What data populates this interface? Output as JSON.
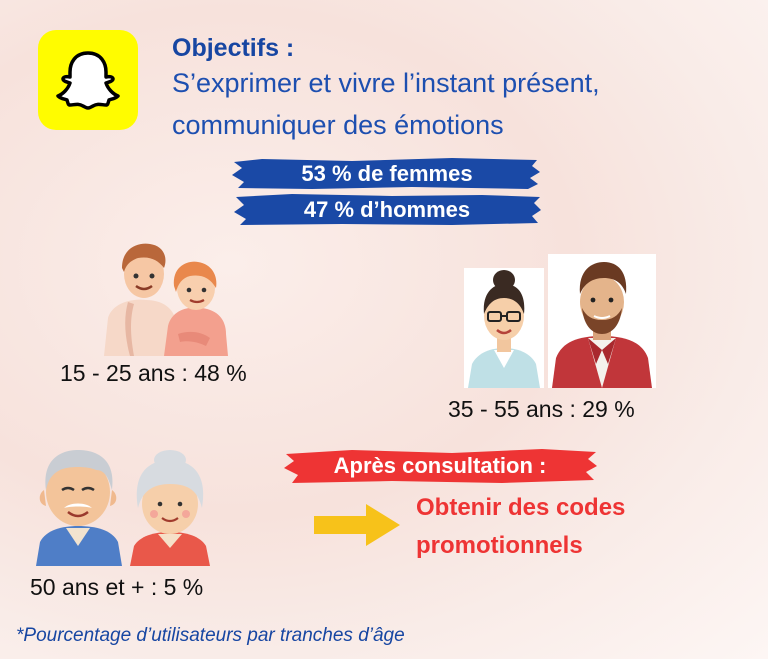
{
  "objectives": {
    "title": "Objectifs :",
    "line1": "S’exprimer et vivre l’instant présent,",
    "line2": "communiquer des émotions"
  },
  "gender": {
    "women": "53 % de femmes",
    "men": "47 % d’hommes",
    "women_share_pct": 53,
    "men_share_pct": 47
  },
  "age_groups": [
    {
      "label": "15 - 25  ans : 48 %",
      "share_pct": 48
    },
    {
      "label": "35 - 55  ans : 29 %",
      "share_pct": 29
    },
    {
      "label": "50 ans et + : 5 %",
      "share_pct": 5
    }
  ],
  "after": {
    "band": "Après consultation :",
    "goal_line1": "Obtenir des codes",
    "goal_line2": "promotionnels"
  },
  "footnote": "*Pourcentage d’utilisateurs par tranches d’âge",
  "colors": {
    "snapchat_yellow": "#fffc00",
    "brand_blue": "#1746a2",
    "stripe_blue": "#1a49a6",
    "accent_red": "#ee3434",
    "arrow_yellow": "#f7c21a"
  },
  "icons": [
    "snapchat-ghost-icon",
    "young-couple-illustration",
    "adult-woman-illustration",
    "adult-man-illustration",
    "senior-couple-illustration",
    "arrow-right-icon"
  ]
}
